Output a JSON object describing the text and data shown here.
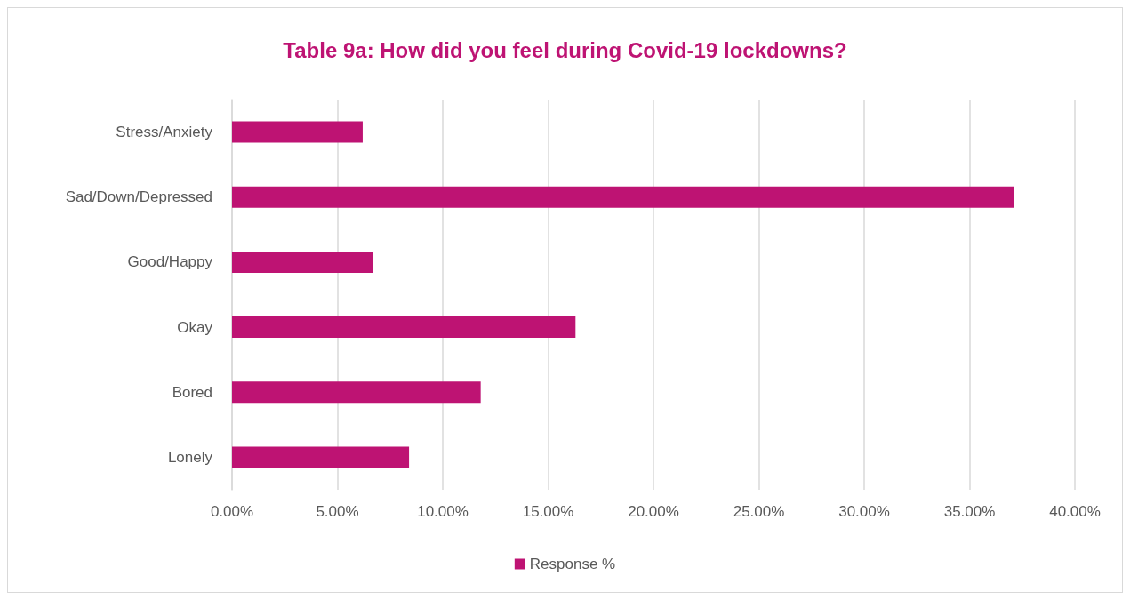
{
  "chart_data": {
    "type": "bar",
    "orientation": "horizontal",
    "title": "Table 9a: How did you feel during Covid-19 lockdowns?",
    "categories": [
      "Stress/Anxiety",
      "Sad/Down/Depressed",
      "Good/Happy",
      "Okay",
      "Bored",
      "Lonely"
    ],
    "series": [
      {
        "name": "Response %",
        "color": "#be1373",
        "values": [
          6.2,
          37.1,
          6.7,
          16.3,
          11.8,
          8.4
        ]
      }
    ],
    "xlim": [
      0,
      40
    ],
    "xticks": [
      {
        "value": 0,
        "label": "0.00%"
      },
      {
        "value": 5,
        "label": "5.00%"
      },
      {
        "value": 10,
        "label": "10.00%"
      },
      {
        "value": 15,
        "label": "15.00%"
      },
      {
        "value": 20,
        "label": "20.00%"
      },
      {
        "value": 25,
        "label": "25.00%"
      },
      {
        "value": 30,
        "label": "30.00%"
      },
      {
        "value": 35,
        "label": "35.00%"
      },
      {
        "value": 40,
        "label": "40.00%"
      }
    ],
    "grid": "x",
    "legend": "bottom"
  }
}
